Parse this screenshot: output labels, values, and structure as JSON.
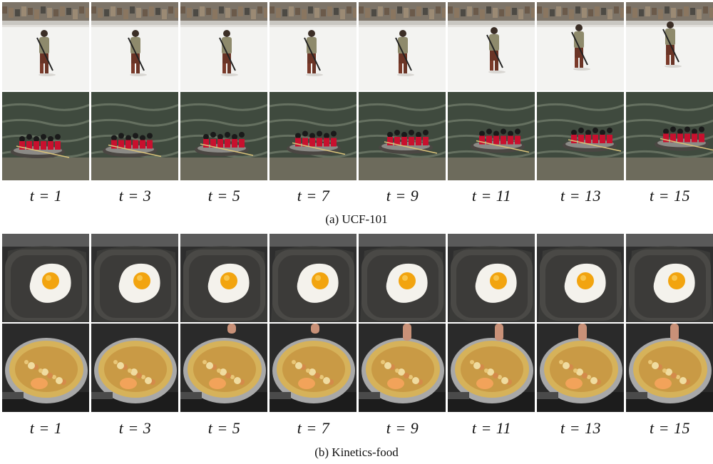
{
  "panels": [
    {
      "caption": "(a) UCF-101",
      "time_labels": [
        "t = 1",
        "t = 3",
        "t = 5",
        "t = 7",
        "t = 9",
        "t = 11",
        "t = 13",
        "t = 15"
      ],
      "rows": [
        "skier sequence",
        "rafting sequence"
      ]
    },
    {
      "caption": "(b) Kinetics-food",
      "time_labels": [
        "t = 1",
        "t = 3",
        "t = 5",
        "t = 7",
        "t = 9",
        "t = 11",
        "t = 13",
        "t = 15"
      ],
      "rows": [
        "fried egg sequence",
        "soup pot sequence"
      ]
    }
  ]
}
